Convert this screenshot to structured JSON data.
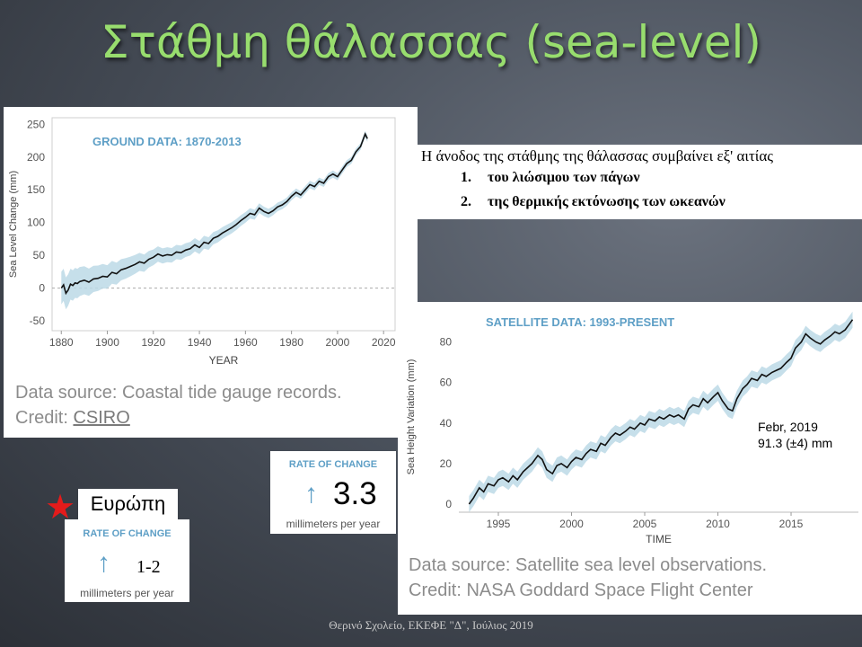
{
  "slide": {
    "title": "Στάθμη θάλασσας (sea-level)",
    "footer": "Θερινό Σχολείο, ΕΚΕΦΕ \"Δ\", Ιούλιος 2019"
  },
  "causes": {
    "intro": "Η άνοδος της στάθμης της θάλασσας συμβαίνει εξ' αιτίας",
    "items": [
      {
        "num": "1.",
        "text": "του λιώσιμου των πάγων"
      },
      {
        "num": "2.",
        "text": "της θερμικής εκτόνωσης των ωκεανών"
      }
    ]
  },
  "rate_global": {
    "label": "RATE OF CHANGE",
    "arrow": "↑",
    "value": "3.3",
    "unit": "millimeters per year"
  },
  "rate_europe": {
    "label": "RATE OF CHANGE",
    "arrow": "↑",
    "value": "1-2",
    "unit": "millimeters per year"
  },
  "europe": {
    "star": "★",
    "label": "Ευρώπη"
  },
  "ground": {
    "source_text": "Data source: Coastal tide gauge records.",
    "credit_prefix": "Credit: ",
    "credit_link": "CSIRO"
  },
  "satellite": {
    "source_text": "Data source: Satellite sea level observations.",
    "credit_text": "Credit: NASA Goddard Space Flight Center",
    "annotation_line1": "Febr, 2019",
    "annotation_line2": "91.3 (±4) mm"
  },
  "colors": {
    "title": "#98dd6e",
    "chart_heading": "#5e9fc6",
    "series_line": "#111111",
    "band": "#bcd9e6",
    "star": "#e41b1b"
  },
  "chart_data": [
    {
      "type": "line",
      "title": "GROUND DATA: 1870-2013",
      "xlabel": "YEAR",
      "ylabel": "Sea Level Change (mm)",
      "xlim": [
        1876,
        2025
      ],
      "ylim": [
        -65,
        260
      ],
      "xticks": [
        1880,
        1900,
        1920,
        1940,
        1960,
        1980,
        2000,
        2020
      ],
      "yticks": [
        -50,
        0,
        50,
        100,
        150,
        200,
        250
      ],
      "reference_line": 0,
      "band_halfwidth": [
        25,
        18,
        12,
        10,
        8,
        6,
        5
      ],
      "band_years": [
        1880,
        1900,
        1920,
        1940,
        1960,
        1980,
        2013
      ],
      "x": [
        1880,
        1881,
        1882,
        1883,
        1884,
        1885,
        1886,
        1887,
        1888,
        1890,
        1892,
        1894,
        1896,
        1898,
        1900,
        1902,
        1904,
        1906,
        1908,
        1910,
        1912,
        1914,
        1916,
        1918,
        1920,
        1922,
        1924,
        1926,
        1928,
        1930,
        1932,
        1934,
        1936,
        1938,
        1940,
        1942,
        1944,
        1946,
        1948,
        1950,
        1952,
        1954,
        1956,
        1958,
        1960,
        1962,
        1964,
        1966,
        1968,
        1970,
        1972,
        1974,
        1976,
        1978,
        1980,
        1982,
        1984,
        1986,
        1988,
        1990,
        1992,
        1994,
        1996,
        1998,
        2000,
        2002,
        2004,
        2006,
        2008,
        2010,
        2012,
        2013
      ],
      "series": [
        {
          "values": [
            0,
            5,
            -8,
            -3,
            6,
            4,
            8,
            7,
            10,
            12,
            9,
            14,
            15,
            18,
            17,
            24,
            22,
            28,
            30,
            33,
            36,
            40,
            38,
            44,
            47,
            52,
            49,
            51,
            50,
            55,
            54,
            58,
            60,
            66,
            62,
            70,
            68,
            76,
            79,
            84,
            88,
            92,
            97,
            103,
            108,
            114,
            112,
            122,
            117,
            114,
            118,
            124,
            127,
            132,
            140,
            146,
            142,
            150,
            158,
            155,
            163,
            160,
            170,
            174,
            170,
            180,
            190,
            195,
            208,
            216,
            235,
            228
          ]
        }
      ]
    },
    {
      "type": "line",
      "title": "SATELLITE DATA: 1993-PRESENT",
      "xlabel": "TIME",
      "ylabel": "Sea Height Variation (mm)",
      "xlim": [
        1992.3,
        2019.6
      ],
      "ylim": [
        -4,
        90
      ],
      "xticks": [
        1995,
        2000,
        2005,
        2010,
        2015
      ],
      "yticks": [
        0,
        20,
        40,
        60,
        80
      ],
      "band_halfwidth": 4,
      "x": [
        1993.0,
        1993.3,
        1993.7,
        1994.0,
        1994.3,
        1994.7,
        1995.0,
        1995.3,
        1995.7,
        1996.0,
        1996.3,
        1996.7,
        1997.0,
        1997.3,
        1997.7,
        1998.0,
        1998.3,
        1998.7,
        1999.0,
        1999.3,
        1999.7,
        2000.0,
        2000.3,
        2000.7,
        2001.0,
        2001.3,
        2001.7,
        2002.0,
        2002.3,
        2002.7,
        2003.0,
        2003.3,
        2003.7,
        2004.0,
        2004.3,
        2004.7,
        2005.0,
        2005.3,
        2005.7,
        2006.0,
        2006.3,
        2006.7,
        2007.0,
        2007.3,
        2007.7,
        2008.0,
        2008.3,
        2008.7,
        2009.0,
        2009.3,
        2009.7,
        2010.0,
        2010.3,
        2010.7,
        2011.0,
        2011.3,
        2011.7,
        2012.0,
        2012.3,
        2012.7,
        2013.0,
        2013.3,
        2013.7,
        2014.0,
        2014.3,
        2014.7,
        2015.0,
        2015.3,
        2015.7,
        2016.0,
        2016.3,
        2016.7,
        2017.0,
        2017.3,
        2017.7,
        2018.0,
        2018.3,
        2018.7,
        2019.0,
        2019.2
      ],
      "series": [
        {
          "values": [
            0,
            3,
            8,
            6,
            10,
            9,
            12,
            13,
            11,
            14,
            12,
            16,
            18,
            20,
            24,
            22,
            17,
            15,
            19,
            20,
            18,
            21,
            23,
            22,
            25,
            27,
            26,
            30,
            29,
            33,
            35,
            34,
            36,
            38,
            37,
            40,
            39,
            42,
            41,
            43,
            42,
            44,
            43,
            44,
            42,
            47,
            49,
            48,
            52,
            50,
            53,
            55,
            51,
            47,
            46,
            52,
            57,
            59,
            62,
            61,
            64,
            63,
            65,
            66,
            67,
            70,
            72,
            77,
            80,
            84,
            82,
            80,
            79,
            81,
            83,
            85,
            84,
            86,
            89,
            91
          ]
        }
      ]
    }
  ]
}
